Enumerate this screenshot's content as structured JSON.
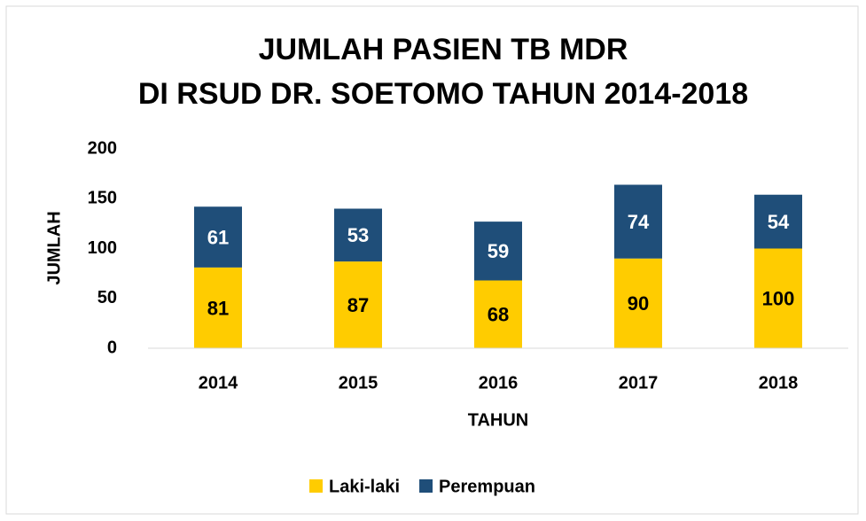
{
  "chart_data": {
    "type": "stacked_bar",
    "title": [
      "JUMLAH PASIEN TB MDR",
      "DI RSUD DR. SOETOMO TAHUN 2014-2018"
    ],
    "xlabel": "TAHUN",
    "ylabel": "JUMLAH",
    "categories": [
      "2014",
      "2015",
      "2016",
      "2017",
      "2018"
    ],
    "series": [
      {
        "name": "Laki-laki",
        "color": "#ffcc00",
        "label_color": "#000000",
        "values": [
          81,
          87,
          68,
          90,
          100
        ]
      },
      {
        "name": "Perempuan",
        "color": "#1f4e79",
        "label_color": "#ffffff",
        "values": [
          61,
          53,
          59,
          74,
          54
        ]
      }
    ],
    "ylim": [
      0,
      200
    ],
    "yticks": [
      0,
      50,
      100,
      150,
      200
    ],
    "grid": false,
    "legend": "bottom"
  }
}
